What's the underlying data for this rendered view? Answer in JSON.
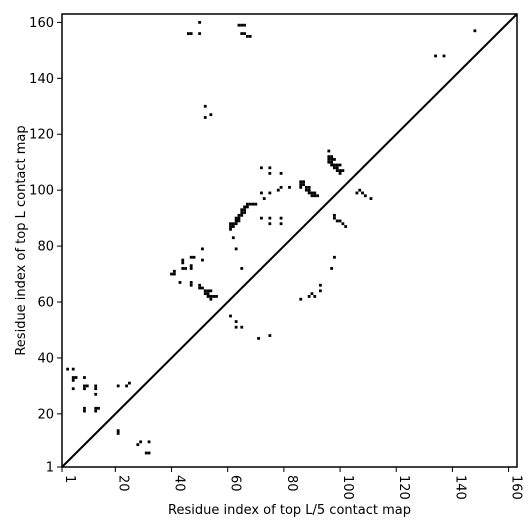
{
  "chart_data": {
    "type": "scatter",
    "title": "",
    "xlabel": "Residue index of top L/5 contact map",
    "ylabel": "Residue index of top L contact map",
    "xlim": [
      1,
      163
    ],
    "ylim": [
      1,
      163
    ],
    "xticks": [
      1,
      20,
      40,
      60,
      80,
      100,
      120,
      140,
      160
    ],
    "yticks": [
      1,
      20,
      40,
      60,
      80,
      100,
      120,
      140,
      160
    ],
    "xtick_labels": [
      "1",
      "20",
      "40",
      "60",
      "80",
      "100",
      "120",
      "140",
      "160"
    ],
    "ytick_labels": [
      "1",
      "20",
      "40",
      "60",
      "80",
      "100",
      "120",
      "140",
      "160"
    ],
    "grid": false,
    "diagonal_line": true,
    "marker_color": "#000000",
    "points": [
      [
        3,
        36
      ],
      [
        5,
        36
      ],
      [
        5,
        33
      ],
      [
        6,
        33
      ],
      [
        5,
        32
      ],
      [
        5,
        29
      ],
      [
        9,
        33
      ],
      [
        9,
        30
      ],
      [
        10,
        30
      ],
      [
        9,
        29
      ],
      [
        9,
        22
      ],
      [
        9,
        21
      ],
      [
        13,
        30
      ],
      [
        13,
        29
      ],
      [
        13,
        27
      ],
      [
        13,
        22
      ],
      [
        14,
        22
      ],
      [
        13,
        21
      ],
      [
        21,
        30
      ],
      [
        21,
        14
      ],
      [
        21,
        13
      ],
      [
        24,
        30
      ],
      [
        25,
        31
      ],
      [
        28,
        9
      ],
      [
        29,
        10
      ],
      [
        32,
        10
      ],
      [
        31,
        6
      ],
      [
        32,
        6
      ],
      [
        40,
        70
      ],
      [
        41,
        70
      ],
      [
        41,
        71
      ],
      [
        43,
        67
      ],
      [
        44,
        75
      ],
      [
        44,
        74
      ],
      [
        44,
        72
      ],
      [
        45,
        72
      ],
      [
        47,
        76
      ],
      [
        48,
        76
      ],
      [
        47,
        73
      ],
      [
        47,
        72
      ],
      [
        47,
        67
      ],
      [
        47,
        66
      ],
      [
        50,
        66
      ],
      [
        50,
        65
      ],
      [
        51,
        79
      ],
      [
        51,
        75
      ],
      [
        51,
        65
      ],
      [
        52,
        64
      ],
      [
        52,
        63
      ],
      [
        53,
        64
      ],
      [
        53,
        63
      ],
      [
        53,
        62
      ],
      [
        54,
        62
      ],
      [
        54,
        61
      ],
      [
        54,
        64
      ],
      [
        55,
        62
      ],
      [
        56,
        62
      ],
      [
        61,
        88
      ],
      [
        61,
        87
      ],
      [
        61,
        86
      ],
      [
        62,
        88
      ],
      [
        62,
        87
      ],
      [
        63,
        89
      ],
      [
        63,
        88
      ],
      [
        63,
        90
      ],
      [
        64,
        91
      ],
      [
        64,
        90
      ],
      [
        64,
        89
      ],
      [
        65,
        93
      ],
      [
        65,
        92
      ],
      [
        65,
        91
      ],
      [
        66,
        94
      ],
      [
        66,
        93
      ],
      [
        66,
        92
      ],
      [
        67,
        95
      ],
      [
        67,
        94
      ],
      [
        68,
        95
      ],
      [
        69,
        95
      ],
      [
        70,
        95
      ],
      [
        63,
        79
      ],
      [
        62,
        83
      ],
      [
        61,
        55
      ],
      [
        63,
        53
      ],
      [
        63,
        51
      ],
      [
        65,
        51
      ],
      [
        65,
        72
      ],
      [
        71,
        47
      ],
      [
        75,
        48
      ],
      [
        72,
        108
      ],
      [
        72,
        99
      ],
      [
        73,
        97
      ],
      [
        72,
        90
      ],
      [
        75,
        108
      ],
      [
        75,
        106
      ],
      [
        75,
        99
      ],
      [
        75,
        90
      ],
      [
        75,
        88
      ],
      [
        78,
        100
      ],
      [
        79,
        106
      ],
      [
        79,
        101
      ],
      [
        79,
        90
      ],
      [
        79,
        88
      ],
      [
        82,
        101
      ],
      [
        86,
        103
      ],
      [
        86,
        102
      ],
      [
        86,
        101
      ],
      [
        87,
        103
      ],
      [
        87,
        102
      ],
      [
        88,
        101
      ],
      [
        88,
        100
      ],
      [
        89,
        101
      ],
      [
        89,
        100
      ],
      [
        89,
        99
      ],
      [
        90,
        99
      ],
      [
        90,
        98
      ],
      [
        91,
        99
      ],
      [
        91,
        98
      ],
      [
        92,
        98
      ],
      [
        86,
        61
      ],
      [
        89,
        62
      ],
      [
        90,
        63
      ],
      [
        91,
        62
      ],
      [
        93,
        64
      ],
      [
        93,
        66
      ],
      [
        96,
        114
      ],
      [
        96,
        112
      ],
      [
        96,
        111
      ],
      [
        96,
        110
      ],
      [
        97,
        112
      ],
      [
        97,
        111
      ],
      [
        97,
        110
      ],
      [
        97,
        109
      ],
      [
        98,
        111
      ],
      [
        98,
        109
      ],
      [
        98,
        108
      ],
      [
        99,
        109
      ],
      [
        99,
        108
      ],
      [
        99,
        107
      ],
      [
        100,
        109
      ],
      [
        100,
        107
      ],
      [
        100,
        106
      ],
      [
        101,
        107
      ],
      [
        97,
        72
      ],
      [
        98,
        76
      ],
      [
        98,
        91
      ],
      [
        98,
        90
      ],
      [
        99,
        89
      ],
      [
        100,
        89
      ],
      [
        101,
        88
      ],
      [
        102,
        87
      ],
      [
        106,
        99
      ],
      [
        107,
        100
      ],
      [
        108,
        99
      ],
      [
        109,
        98
      ],
      [
        111,
        97
      ],
      [
        46,
        156
      ],
      [
        47,
        156
      ],
      [
        50,
        160
      ],
      [
        50,
        156
      ],
      [
        52,
        130
      ],
      [
        52,
        126
      ],
      [
        54,
        127
      ],
      [
        64,
        159
      ],
      [
        65,
        159
      ],
      [
        66,
        159
      ],
      [
        65,
        156
      ],
      [
        66,
        156
      ],
      [
        67,
        155
      ],
      [
        68,
        155
      ],
      [
        134,
        148
      ],
      [
        137,
        148
      ],
      [
        148,
        157
      ]
    ]
  }
}
